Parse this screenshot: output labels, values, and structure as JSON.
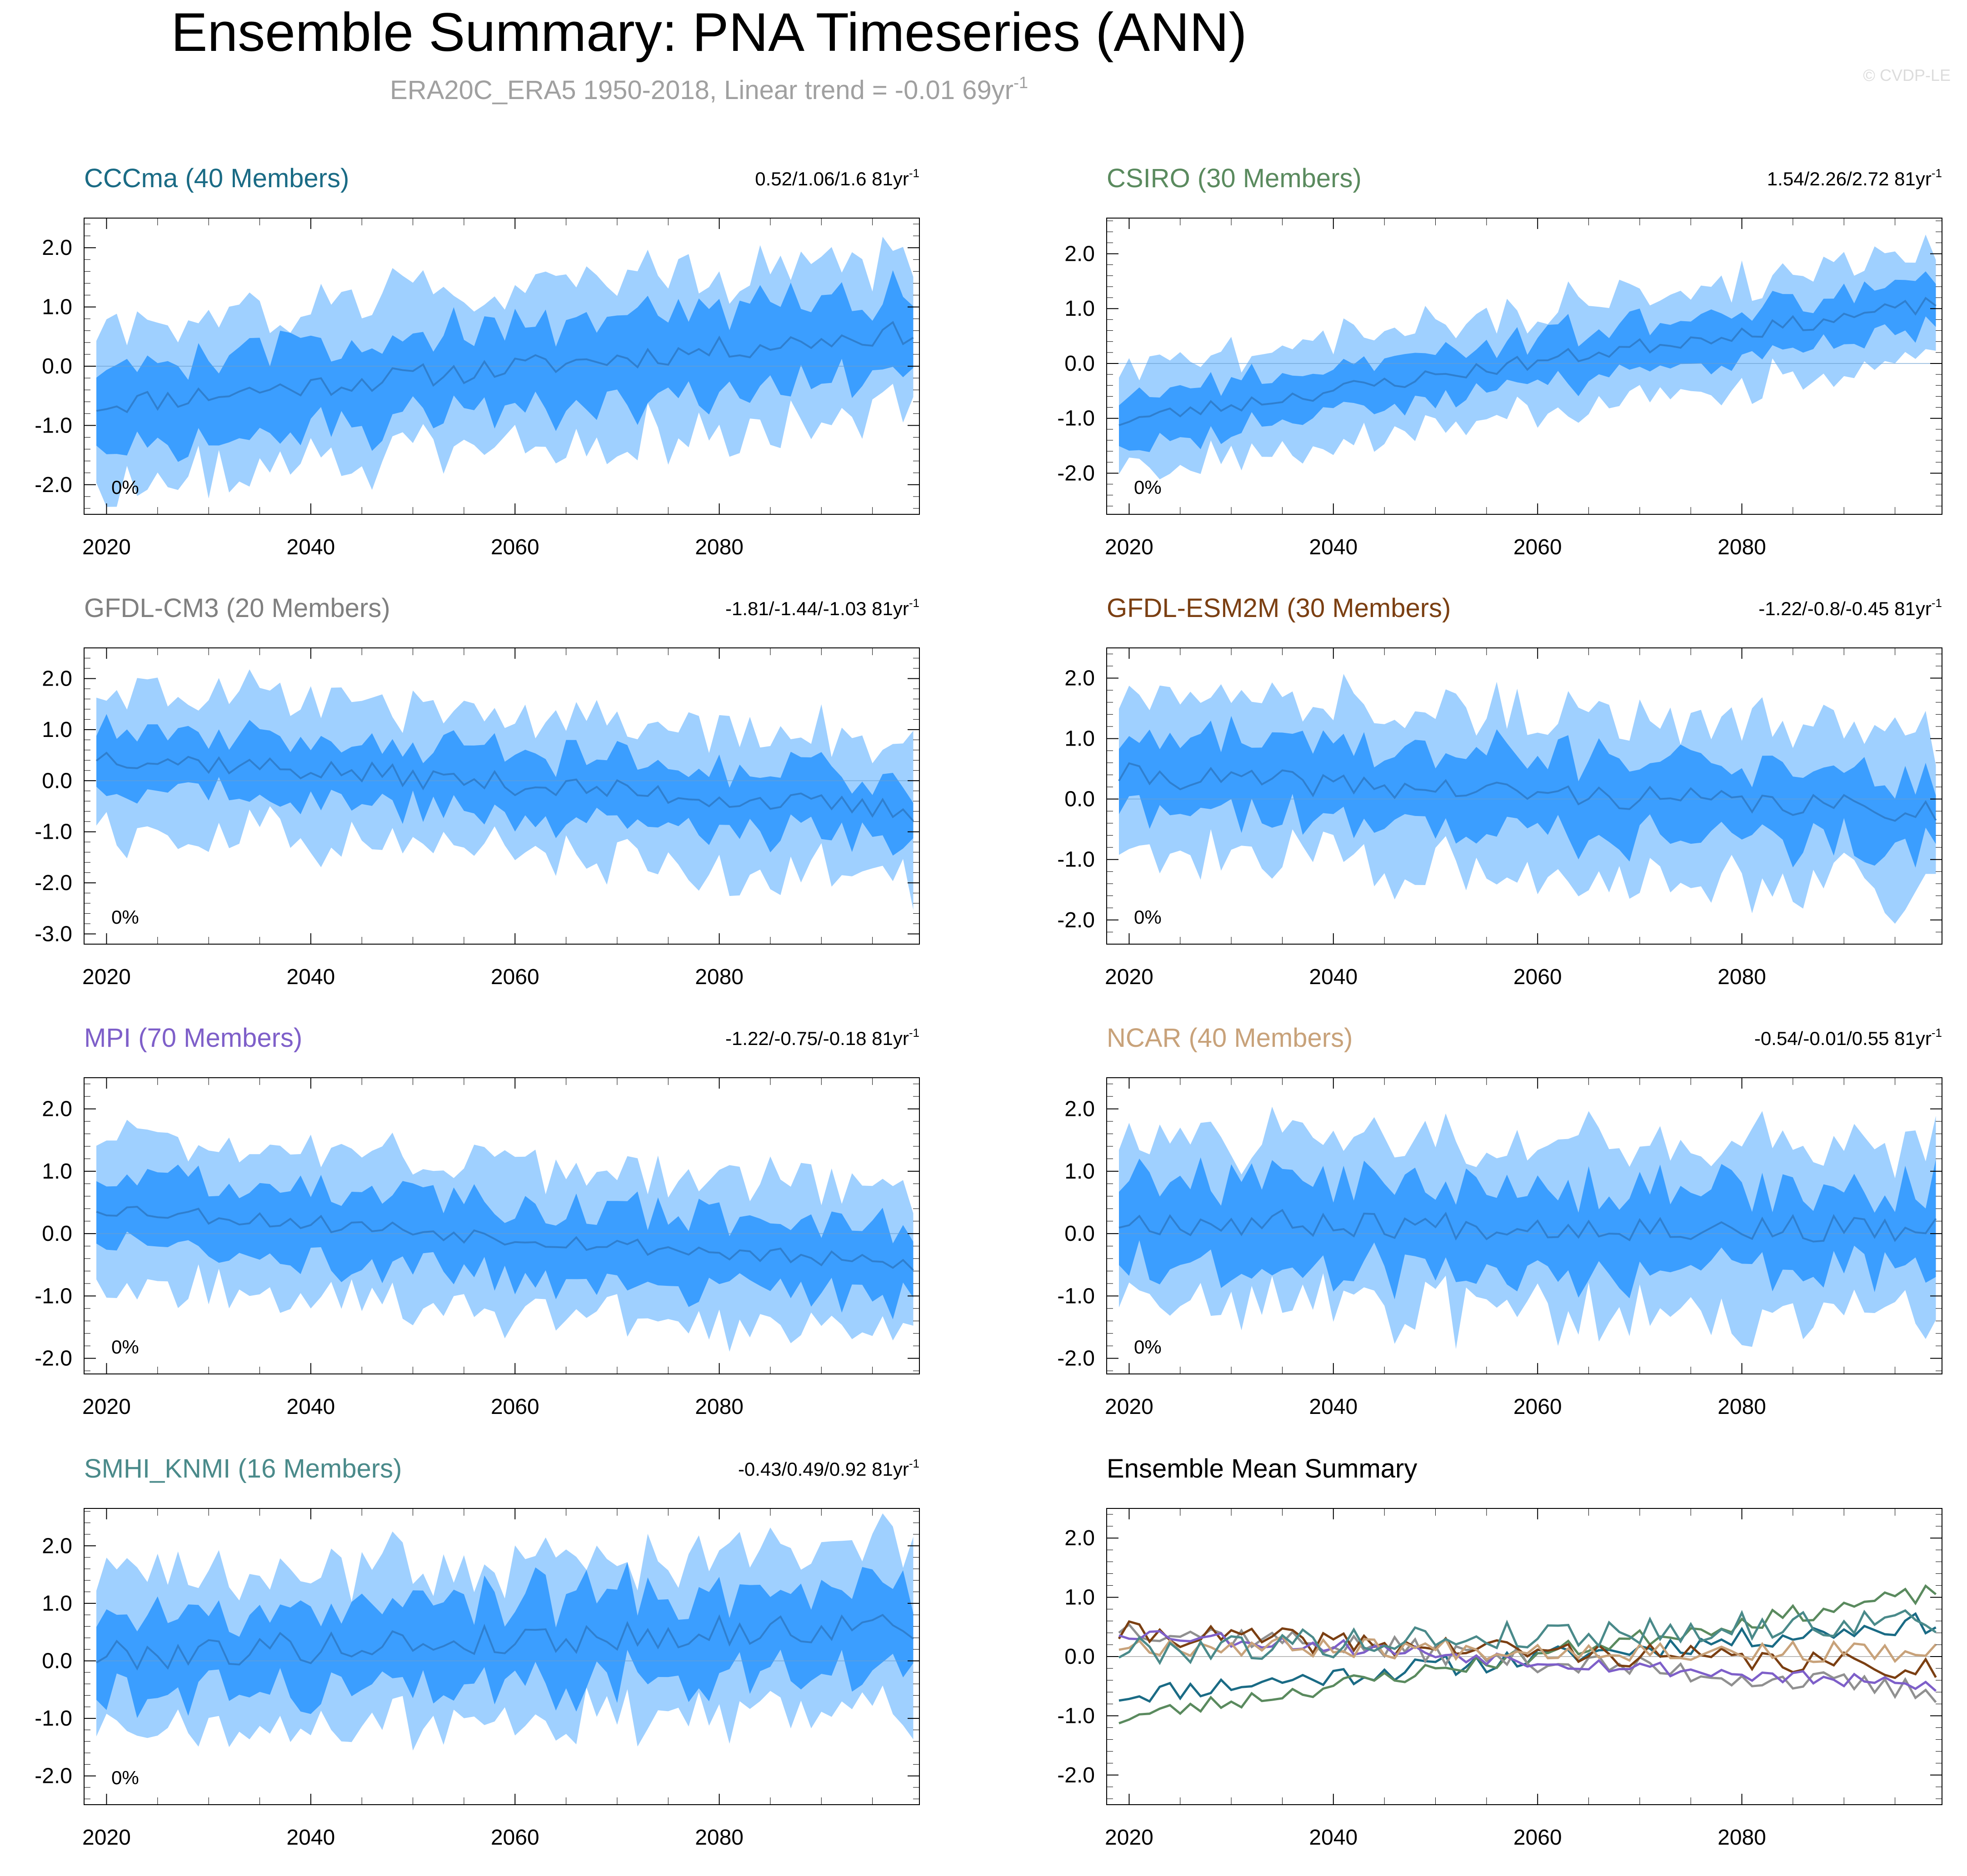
{
  "page": {
    "title": "Ensemble Summary: PNA Timeseries (ANN)",
    "subtitle": "ERA20C_ERA5 1950-2018, Linear trend = -0.01 69yr",
    "subtitle_sup": "-1",
    "watermark": "© CVDP-LE"
  },
  "colors": {
    "band_outer": "#9fd0ff",
    "band_inner": "#3b9eff",
    "mean_line": "#2f7fcf",
    "axis": "#000000",
    "subtitle": "#a0a0a0",
    "watermark": "#dcdcdc"
  },
  "chart_data": [
    {
      "type": "area",
      "title": "CCCma (40 Members)",
      "title_color": "#1a6b85",
      "trend_label": "0.52/1.06/1.6 81yr",
      "trend_sup": "-1",
      "pct_label": "0%",
      "x_start": 2019,
      "x_end": 2099,
      "xticks": [
        2020,
        2040,
        2060,
        2080
      ],
      "ylim": [
        -2.5,
        2.5
      ],
      "yticks": [
        2.0,
        1.0,
        0.0,
        -1.0,
        -2.0
      ],
      "ytick_labels": [
        "2.0",
        "1.0",
        "0.0",
        "-1.0",
        "-2.0"
      ],
      "mean_start": -0.65,
      "mean_end": 0.58,
      "inner_halfwidth": 0.7,
      "outer_halfwidth": 1.3,
      "noise": 0.2,
      "seed": 11
    },
    {
      "type": "area",
      "title": "CSIRO (30 Members)",
      "title_color": "#5a8a5e",
      "trend_label": "1.54/2.26/2.72 81yr",
      "trend_sup": "-1",
      "pct_label": "0%",
      "x_start": 2019,
      "x_end": 2099,
      "xticks": [
        2020,
        2040,
        2060,
        2080
      ],
      "ylim": [
        -2.75,
        2.65
      ],
      "yticks": [
        2.0,
        1.0,
        0.0,
        -1.0,
        -2.0
      ],
      "ytick_labels": [
        "2.0",
        "1.0",
        "0.0",
        "-1.0",
        "-2.0"
      ],
      "mean_start": -1.05,
      "mean_end": 1.08,
      "inner_halfwidth": 0.45,
      "outer_halfwidth": 0.95,
      "noise": 0.15,
      "seed": 23
    },
    {
      "type": "area",
      "title": "GFDL-CM3 (20 Members)",
      "title_color": "#808080",
      "trend_label": "-1.81/-1.44/-1.03 81yr",
      "trend_sup": "-1",
      "pct_label": "0%",
      "x_start": 2019,
      "x_end": 2099,
      "xticks": [
        2020,
        2040,
        2060,
        2080
      ],
      "ylim": [
        -3.2,
        2.6
      ],
      "yticks": [
        2.0,
        1.0,
        0.0,
        -1.0,
        -2.0,
        -3.0
      ],
      "ytick_labels": [
        "2.0",
        "1.0",
        "0.0",
        "-1.0",
        "-2.0",
        "-3.0"
      ],
      "mean_start": 0.5,
      "mean_end": -0.6,
      "inner_halfwidth": 0.6,
      "outer_halfwidth": 1.35,
      "noise": 0.22,
      "seed": 37
    },
    {
      "type": "area",
      "title": "GFDL-ESM2M (30 Members)",
      "title_color": "#7b3f12",
      "trend_label": "-1.22/-0.8/-0.45 81yr",
      "trend_sup": "-1",
      "pct_label": "0%",
      "x_start": 2019,
      "x_end": 2099,
      "xticks": [
        2020,
        2040,
        2060,
        2080
      ],
      "ylim": [
        -2.4,
        2.5
      ],
      "yticks": [
        2.0,
        1.0,
        0.0,
        -1.0,
        -2.0
      ],
      "ytick_labels": [
        "2.0",
        "1.0",
        "0.0",
        "-1.0",
        "-2.0"
      ],
      "mean_start": 0.4,
      "mean_end": -0.2,
      "inner_halfwidth": 0.65,
      "outer_halfwidth": 1.3,
      "noise": 0.2,
      "seed": 41
    },
    {
      "type": "area",
      "title": "MPI (70 Members)",
      "title_color": "#7e5fc9",
      "trend_label": "-1.22/-0.75/-0.18 81yr",
      "trend_sup": "-1",
      "pct_label": "0%",
      "x_start": 2019,
      "x_end": 2099,
      "xticks": [
        2020,
        2040,
        2060,
        2080
      ],
      "ylim": [
        -2.25,
        2.5
      ],
      "yticks": [
        2.0,
        1.0,
        0.0,
        -1.0,
        -2.0
      ],
      "ytick_labels": [
        "2.0",
        "1.0",
        "0.0",
        "-1.0",
        "-2.0"
      ],
      "mean_start": 0.42,
      "mean_end": -0.52,
      "inner_halfwidth": 0.6,
      "outer_halfwidth": 1.15,
      "noise": 0.14,
      "seed": 53
    },
    {
      "type": "area",
      "title": "NCAR (40 Members)",
      "title_color": "#c8a27a",
      "trend_label": "-0.54/-0.01/0.55 81yr",
      "trend_sup": "-1",
      "pct_label": "0%",
      "x_start": 2019,
      "x_end": 2099,
      "xticks": [
        2020,
        2040,
        2060,
        2080
      ],
      "ylim": [
        -2.25,
        2.5
      ],
      "yticks": [
        2.0,
        1.0,
        0.0,
        -1.0,
        -2.0
      ],
      "ytick_labels": [
        "2.0",
        "1.0",
        "0.0",
        "-1.0",
        "-2.0"
      ],
      "mean_start": 0.2,
      "mean_end": 0.05,
      "inner_halfwidth": 0.7,
      "outer_halfwidth": 1.35,
      "noise": 0.22,
      "seed": 67
    },
    {
      "type": "area",
      "title": "SMHI_KNMI (16 Members)",
      "title_color": "#4a8a8a",
      "trend_label": "-0.43/0.49/0.92 81yr",
      "trend_sup": "-1",
      "pct_label": "0%",
      "x_start": 2019,
      "x_end": 2099,
      "xticks": [
        2020,
        2040,
        2060,
        2080
      ],
      "ylim": [
        -2.5,
        2.65
      ],
      "yticks": [
        2.0,
        1.0,
        0.0,
        -1.0,
        -2.0
      ],
      "ytick_labels": [
        "2.0",
        "1.0",
        "0.0",
        "-1.0",
        "-2.0"
      ],
      "mean_start": 0.1,
      "mean_end": 0.62,
      "inner_halfwidth": 0.75,
      "outer_halfwidth": 1.35,
      "noise": 0.28,
      "seed": 79
    },
    {
      "type": "line",
      "title": "Ensemble Mean Summary",
      "title_color": "#000000",
      "x_start": 2019,
      "x_end": 2099,
      "xticks": [
        2020,
        2040,
        2060,
        2080
      ],
      "ylim": [
        -2.5,
        2.5
      ],
      "yticks": [
        2.0,
        1.0,
        0.0,
        -1.0,
        -2.0
      ],
      "ytick_labels": [
        "2.0",
        "1.0",
        "0.0",
        "-1.0",
        "-2.0"
      ],
      "series": [
        {
          "name": "CCCma",
          "color": "#1a6b85",
          "mean_start": -0.65,
          "mean_end": 0.58,
          "noise": 0.18,
          "seed": 11
        },
        {
          "name": "CSIRO",
          "color": "#5a8a5e",
          "mean_start": -1.05,
          "mean_end": 1.08,
          "noise": 0.15,
          "seed": 23
        },
        {
          "name": "GFDL-CM3",
          "color": "#909090",
          "mean_start": 0.5,
          "mean_end": -0.6,
          "noise": 0.2,
          "seed": 37
        },
        {
          "name": "GFDL-ESM2M",
          "color": "#7b3f12",
          "mean_start": 0.4,
          "mean_end": -0.2,
          "noise": 0.2,
          "seed": 41
        },
        {
          "name": "MPI",
          "color": "#7e5fc9",
          "mean_start": 0.42,
          "mean_end": -0.52,
          "noise": 0.13,
          "seed": 53
        },
        {
          "name": "NCAR",
          "color": "#c8a27a",
          "mean_start": 0.2,
          "mean_end": 0.05,
          "noise": 0.18,
          "seed": 67
        },
        {
          "name": "SMHI_KNMI",
          "color": "#4a8a8a",
          "mean_start": 0.1,
          "mean_end": 0.62,
          "noise": 0.25,
          "seed": 79
        }
      ]
    }
  ]
}
